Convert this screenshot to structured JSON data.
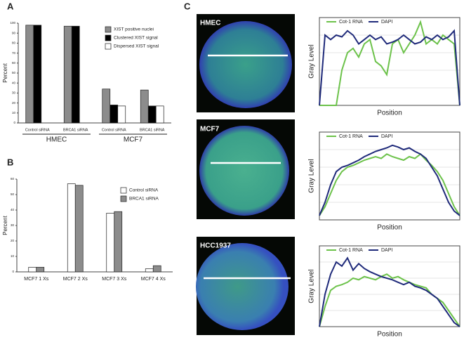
{
  "panel_labels": [
    "A",
    "B",
    "C"
  ],
  "images": [
    "HMEC",
    "MCF7",
    "HCC1937"
  ],
  "chart_data": [
    {
      "type": "bar",
      "ylabel": "Percent",
      "categories": [
        "Control siRNA",
        "BRCA1 siRNA",
        "Control siRNA",
        "BRCA1 siRNA"
      ],
      "group_labels": [
        "HMEC",
        "MCF7"
      ],
      "series": [
        {
          "name": "XIST positive nuclei",
          "color": "#8c8c8c",
          "values": [
            98,
            97,
            34,
            33
          ]
        },
        {
          "name": "Clustered XIST signal",
          "color": "#000000",
          "values": [
            98,
            97,
            18,
            17
          ]
        },
        {
          "name": "Dispersed XIST signal",
          "color": "#ffffff",
          "values": [
            0,
            0,
            17,
            17
          ]
        }
      ],
      "ylim": [
        0,
        100
      ],
      "yticks": [
        0,
        10,
        20,
        30,
        40,
        50,
        60,
        70,
        80,
        90,
        100
      ],
      "legend": "upper right"
    },
    {
      "type": "bar",
      "ylabel": "Percent",
      "categories": [
        "MCF7 1 Xs",
        "MCF7 2 Xs",
        "MCF7 3 Xs",
        "MCF7 4 Xs"
      ],
      "series": [
        {
          "name": "Control siRNA",
          "color": "#ffffff",
          "values": [
            3,
            57,
            38,
            2
          ]
        },
        {
          "name": "BRCA1 siRNA",
          "color": "#8c8c8c",
          "values": [
            3,
            56,
            39,
            4
          ]
        }
      ],
      "ylim": [
        0,
        60
      ],
      "yticks": [
        0,
        10,
        20,
        30,
        40,
        50,
        60
      ],
      "legend": "upper right"
    },
    {
      "type": "line",
      "xlabel": "Position",
      "ylabel": "Gray Level",
      "xlim": [
        0,
        100
      ],
      "ylim": [
        0,
        100
      ],
      "grid": true,
      "x": [
        0,
        4,
        8,
        12,
        16,
        20,
        24,
        28,
        32,
        36,
        40,
        44,
        48,
        52,
        56,
        60,
        64,
        68,
        72,
        76,
        80,
        84,
        88,
        92,
        96,
        100
      ],
      "series": [
        {
          "name": "Cot-1 RNA",
          "color": "#6cc24a",
          "values": [
            0,
            0,
            0,
            0,
            40,
            60,
            65,
            55,
            70,
            75,
            50,
            45,
            35,
            70,
            75,
            60,
            70,
            80,
            95,
            70,
            75,
            70,
            80,
            75,
            70,
            0
          ]
        },
        {
          "name": "DAPI",
          "color": "#1f2a7a",
          "values": [
            0,
            80,
            75,
            80,
            78,
            85,
            80,
            70,
            75,
            80,
            75,
            78,
            70,
            72,
            75,
            80,
            75,
            70,
            72,
            78,
            75,
            80,
            75,
            78,
            85,
            0
          ]
        }
      ]
    },
    {
      "type": "line",
      "xlabel": "Position",
      "ylabel": "Gray Level",
      "xlim": [
        0,
        100
      ],
      "ylim": [
        0,
        100
      ],
      "grid": true,
      "x": [
        0,
        4,
        8,
        12,
        16,
        20,
        24,
        28,
        32,
        36,
        40,
        44,
        48,
        52,
        56,
        60,
        64,
        68,
        72,
        76,
        80,
        84,
        88,
        92,
        96,
        100
      ],
      "series": [
        {
          "name": "Cot-1 RNA",
          "color": "#6cc24a",
          "values": [
            5,
            15,
            30,
            45,
            55,
            60,
            62,
            65,
            68,
            70,
            72,
            70,
            75,
            72,
            70,
            68,
            72,
            70,
            75,
            68,
            62,
            55,
            45,
            30,
            15,
            5
          ]
        },
        {
          "name": "DAPI",
          "color": "#1f2a7a",
          "values": [
            5,
            20,
            40,
            55,
            60,
            62,
            65,
            68,
            72,
            75,
            78,
            80,
            82,
            85,
            83,
            80,
            82,
            78,
            75,
            70,
            60,
            50,
            35,
            20,
            10,
            5
          ]
        }
      ]
    },
    {
      "type": "line",
      "xlabel": "Position",
      "ylabel": "Gray Level",
      "xlim": [
        0,
        100
      ],
      "ylim": [
        0,
        100
      ],
      "grid": true,
      "x": [
        0,
        4,
        8,
        12,
        16,
        20,
        24,
        28,
        32,
        36,
        40,
        44,
        48,
        52,
        56,
        60,
        64,
        68,
        72,
        76,
        80,
        84,
        88,
        92,
        96,
        100
      ],
      "series": [
        {
          "name": "Cot-1 RNA",
          "color": "#6cc24a",
          "values": [
            0,
            25,
            45,
            50,
            52,
            55,
            60,
            58,
            62,
            60,
            58,
            62,
            65,
            60,
            62,
            58,
            55,
            52,
            50,
            48,
            40,
            35,
            30,
            20,
            10,
            0
          ]
        },
        {
          "name": "DAPI",
          "color": "#1f2a7a",
          "values": [
            0,
            40,
            65,
            80,
            75,
            85,
            70,
            78,
            72,
            68,
            65,
            62,
            60,
            58,
            55,
            52,
            55,
            50,
            48,
            45,
            40,
            35,
            25,
            15,
            5,
            0
          ]
        }
      ]
    }
  ]
}
